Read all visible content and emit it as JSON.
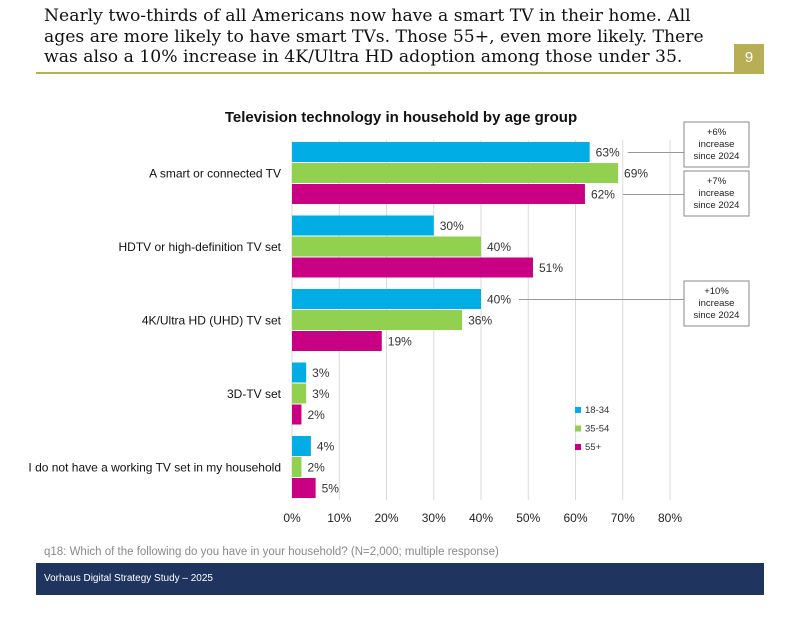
{
  "header": {
    "headline": "Nearly two-thirds of all Americans now have a smart TV in their home. All ages are more likely to have smart TVs. Those 55+, even more likely. There was also a 10% increase in 4K/Ultra HD adoption among those under 35.",
    "page_number": "9"
  },
  "footnote": "q18: Which of the following do you have in your household? (N=2,000; multiple response)",
  "footer": {
    "text": "Vorhaus Digital Strategy Study – 2025"
  },
  "colors": {
    "accent": "#b8ae56",
    "footer": "#1f3560",
    "series_18_34": "#00aee5",
    "series_35_54": "#92d050",
    "series_55_plus": "#c90084"
  },
  "chart_data": {
    "type": "bar",
    "orientation": "horizontal",
    "title": "Television technology in household by age group",
    "categories": [
      "A smart or connected TV",
      "HDTV or high-definition TV set",
      "4K/Ultra HD (UHD) TV set",
      "3D-TV set",
      "I do not have a working TV set in my household"
    ],
    "series": [
      {
        "name": "18-34",
        "color": "#00aee5",
        "values": [
          63,
          30,
          40,
          3,
          4
        ]
      },
      {
        "name": "35-54",
        "color": "#92d050",
        "values": [
          69,
          40,
          36,
          3,
          2
        ]
      },
      {
        "name": "55+",
        "color": "#c90084",
        "values": [
          62,
          51,
          19,
          2,
          5
        ]
      }
    ],
    "value_format": "{v}%",
    "xlim": [
      0,
      80
    ],
    "xticks": [
      "0%",
      "10%",
      "20%",
      "30%",
      "40%",
      "50%",
      "60%",
      "70%",
      "80%"
    ],
    "grid": "vertical",
    "legend_position": "bottom-right",
    "annotations": [
      {
        "text": [
          "+6%",
          "increase",
          "since 2024"
        ],
        "category": 0,
        "series": 0
      },
      {
        "text": [
          "+7%",
          "increase",
          "since 2024"
        ],
        "category": 0,
        "series": 2
      },
      {
        "text": [
          "+10%",
          "increase",
          "since 2024"
        ],
        "category": 2,
        "series": 0
      }
    ]
  }
}
